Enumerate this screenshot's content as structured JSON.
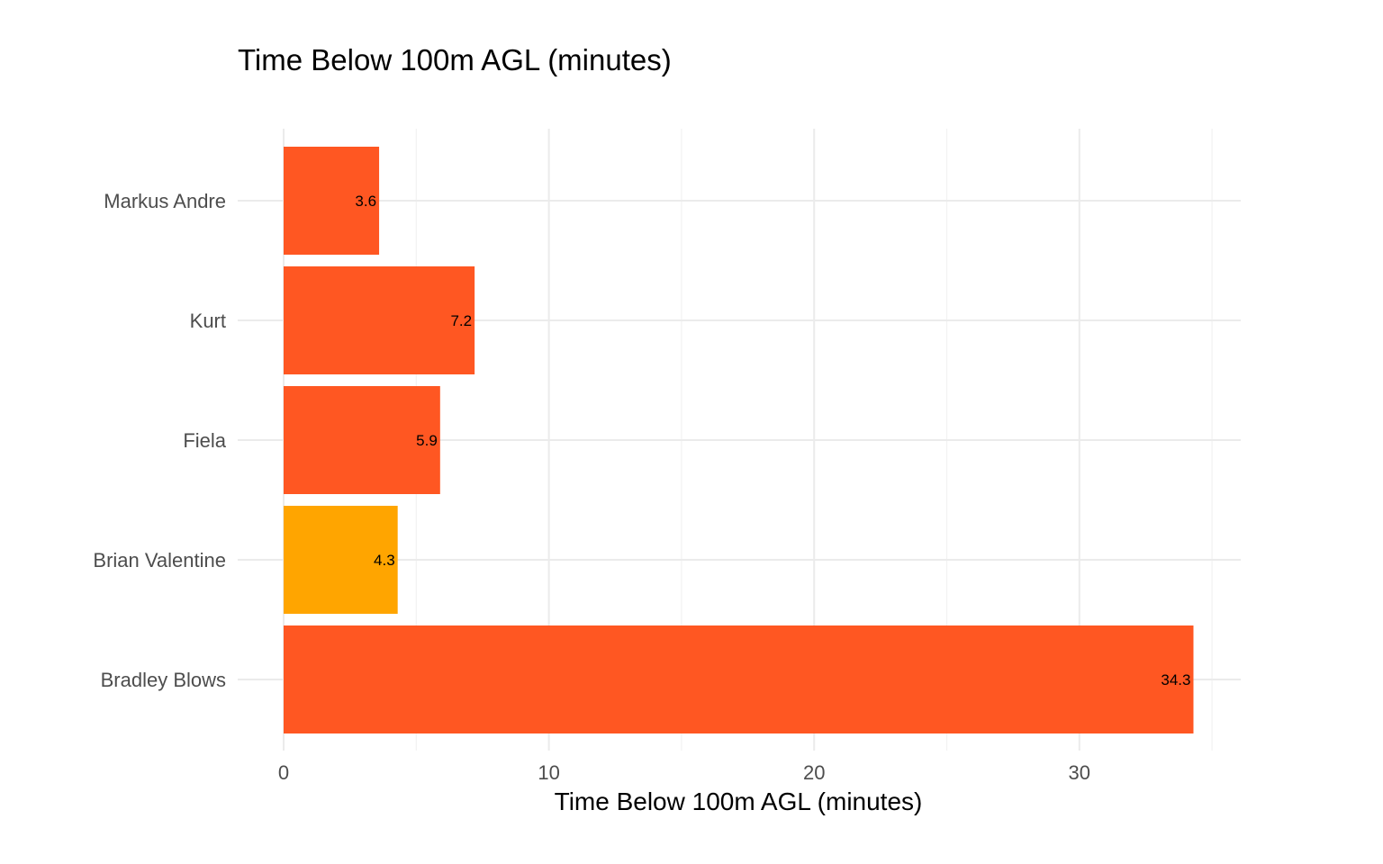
{
  "chart_data": {
    "type": "bar",
    "orientation": "horizontal",
    "title": "Time Below 100m AGL (minutes)",
    "xlabel": "Time Below 100m AGL (minutes)",
    "ylabel": "",
    "categories": [
      "Markus Andre",
      "Kurt",
      "Fiela",
      "Brian Valentine",
      "Bradley Blows"
    ],
    "values": [
      3.6,
      7.2,
      5.9,
      4.3,
      34.3
    ],
    "value_labels": [
      "3.6",
      "7.2",
      "5.9",
      "4.3",
      "34.3"
    ],
    "bar_colors": [
      "#FF5722",
      "#FF5722",
      "#FF5722",
      "#FFA500",
      "#FF5722"
    ],
    "xlim": [
      0,
      35
    ],
    "x_ticks": [
      0,
      10,
      20,
      30
    ],
    "x_tick_labels": [
      "0",
      "10",
      "20",
      "30"
    ],
    "grid": true,
    "legend": "none"
  }
}
